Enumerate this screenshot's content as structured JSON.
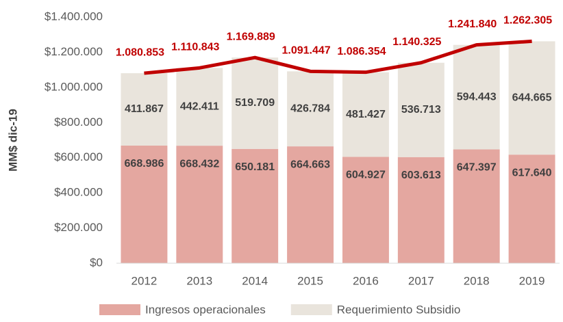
{
  "chart_data": {
    "type": "bar",
    "stacked": true,
    "y_label": "MM$ dic-19",
    "categories": [
      "2012",
      "2013",
      "2014",
      "2015",
      "2016",
      "2017",
      "2018",
      "2019"
    ],
    "series": [
      {
        "name": "Ingresos operacionales",
        "color": "#e4a7a0",
        "values": [
          668986,
          668432,
          650181,
          664663,
          604927,
          603613,
          647397,
          617640
        ],
        "value_labels": [
          "668.986",
          "668.432",
          "650.181",
          "664.663",
          "604.927",
          "603.613",
          "647.397",
          "617.640"
        ]
      },
      {
        "name": "Requerimiento Subsidio",
        "color": "#e9e4dc",
        "values": [
          411867,
          442411,
          519709,
          426784,
          481427,
          536713,
          594443,
          644665
        ],
        "value_labels": [
          "411.867",
          "442.411",
          "519.709",
          "426.784",
          "481.427",
          "536.713",
          "594.443",
          "644.665"
        ]
      }
    ],
    "line": {
      "color": "#c00000",
      "values": [
        1080853,
        1110843,
        1169889,
        1091447,
        1086354,
        1140325,
        1241840,
        1262305
      ],
      "value_labels": [
        "1.080.853",
        "1.110.843",
        "1.169.889",
        "1.091.447",
        "1.086.354",
        "1.140.325",
        "1.241.840",
        "1.262.305"
      ]
    },
    "ylim": [
      0,
      1400000
    ],
    "yticks": [
      {
        "value": 0,
        "label": "$0"
      },
      {
        "value": 200000,
        "label": "$200.000"
      },
      {
        "value": 400000,
        "label": "$400.000"
      },
      {
        "value": 600000,
        "label": "$600.000"
      },
      {
        "value": 800000,
        "label": "$800.000"
      },
      {
        "value": 1000000,
        "label": "$1.000.000"
      },
      {
        "value": 1200000,
        "label": "$1.200.000"
      },
      {
        "value": 1400000,
        "label": "$1.400.000"
      }
    ],
    "grid": false,
    "legend": "bottom"
  }
}
